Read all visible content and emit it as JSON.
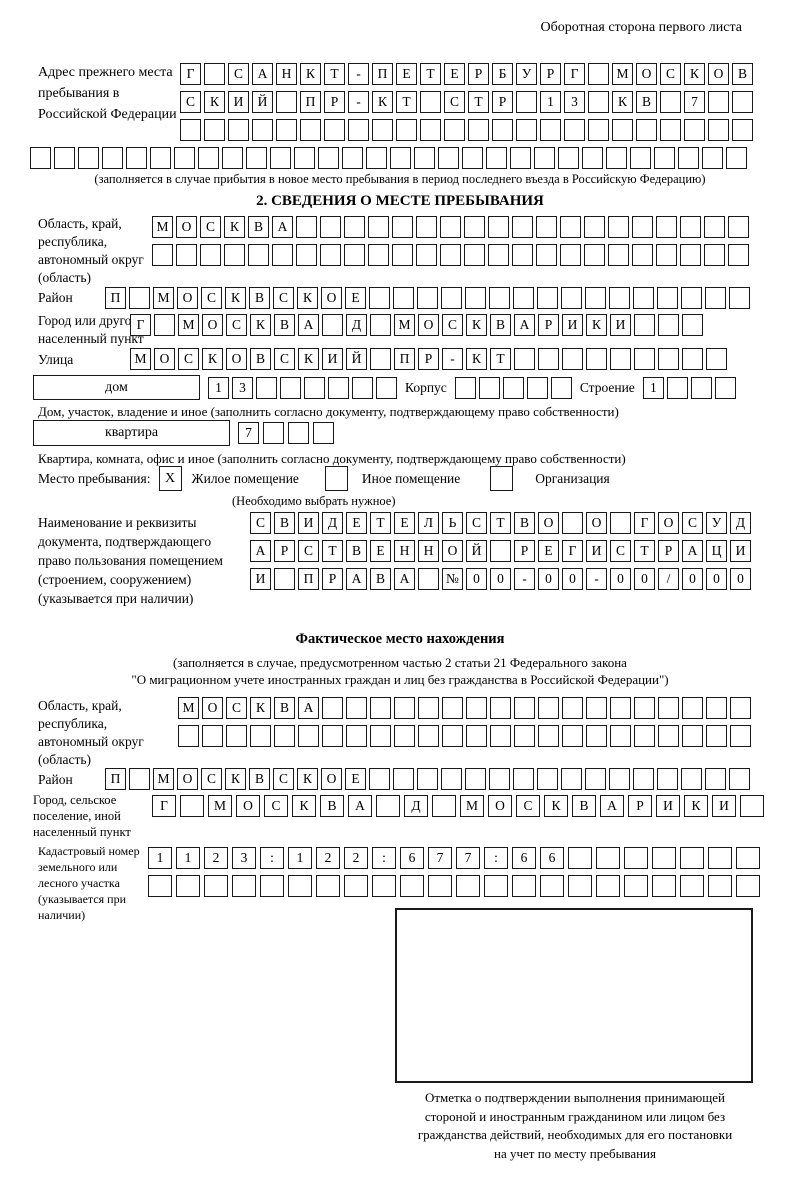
{
  "page": {
    "corner_note": "Оборотная сторона первого листа"
  },
  "prev_address": {
    "label": "Адрес прежнего места пребывания в Российской Федерации",
    "row1": [
      "Г",
      "",
      "С",
      "А",
      "Н",
      "К",
      "Т",
      "-",
      "П",
      "Е",
      "Т",
      "Е",
      "Р",
      "Б",
      "У",
      "Р",
      "Г",
      "",
      "М",
      "О",
      "С",
      "К",
      "О",
      "В"
    ],
    "row2": [
      "С",
      "К",
      "И",
      "Й",
      "",
      "П",
      "Р",
      "-",
      "К",
      "Т",
      "",
      "С",
      "Т",
      "Р",
      "",
      "1",
      "3",
      "",
      "К",
      "В",
      "",
      "7",
      "",
      ""
    ],
    "row3": [
      "",
      "",
      "",
      "",
      "",
      "",
      "",
      "",
      "",
      "",
      "",
      "",
      "",
      "",
      "",
      "",
      "",
      "",
      "",
      "",
      "",
      "",
      "",
      ""
    ],
    "row4": [
      "",
      "",
      "",
      "",
      "",
      "",
      "",
      "",
      "",
      "",
      "",
      "",
      "",
      "",
      "",
      "",
      "",
      "",
      "",
      "",
      "",
      "",
      "",
      "",
      "",
      "",
      "",
      "",
      "",
      ""
    ],
    "footnote": "(заполняется в случае прибытия в новое место пребывания в период последнего въезда в Российскую Федерацию)"
  },
  "section2": {
    "title": "2. СВЕДЕНИЯ О МЕСТЕ ПРЕБЫВАНИЯ",
    "oblast": {
      "label": "Область, край, республика, автономный округ (область)",
      "row1": [
        "М",
        "О",
        "С",
        "К",
        "В",
        "А",
        "",
        "",
        "",
        "",
        "",
        "",
        "",
        "",
        "",
        "",
        "",
        "",
        "",
        "",
        "",
        "",
        "",
        "",
        ""
      ],
      "row2": [
        "",
        "",
        "",
        "",
        "",
        "",
        "",
        "",
        "",
        "",
        "",
        "",
        "",
        "",
        "",
        "",
        "",
        "",
        "",
        "",
        "",
        "",
        "",
        "",
        ""
      ]
    },
    "rayon": {
      "label": "Район",
      "row": [
        "П",
        "",
        "М",
        "О",
        "С",
        "К",
        "В",
        "С",
        "К",
        "О",
        "Е",
        "",
        "",
        "",
        "",
        "",
        "",
        "",
        "",
        "",
        "",
        "",
        "",
        "",
        "",
        "",
        ""
      ]
    },
    "gorod": {
      "label": "Город или другой населенный пункт",
      "row": [
        "Г",
        "",
        "М",
        "О",
        "С",
        "К",
        "В",
        "А",
        "",
        "Д",
        "",
        "М",
        "О",
        "С",
        "К",
        "В",
        "А",
        "Р",
        "И",
        "К",
        "И",
        "",
        "",
        ""
      ]
    },
    "ulitsa": {
      "label": "Улица",
      "row": [
        "М",
        "О",
        "С",
        "К",
        "О",
        "В",
        "С",
        "К",
        "И",
        "Й",
        "",
        "П",
        "Р",
        "-",
        "К",
        "Т",
        "",
        "",
        "",
        "",
        "",
        "",
        "",
        "",
        ""
      ]
    },
    "dom": {
      "box_label": "дом",
      "cells": [
        "1",
        "3",
        "",
        "",
        "",
        "",
        "",
        ""
      ],
      "korpus_label": "Корпус",
      "korpus_cells": [
        "",
        "",
        "",
        "",
        ""
      ],
      "stroenie_label": "Строение",
      "stroenie_cells": [
        "1",
        "",
        "",
        ""
      ],
      "note": "Дом, участок, владение и иное (заполнить согласно документу, подтверждающему право собственности)"
    },
    "kvartira": {
      "box_label": "квартира",
      "cells": [
        "7",
        "",
        "",
        ""
      ],
      "note": "Квартира, комната, офис и иное (заполнить согласно документу, подтверждающему право собственности)"
    },
    "mesto": {
      "label": "Место пребывания:",
      "options": [
        {
          "checked": "X",
          "label": "Жилое помещение"
        },
        {
          "checked": "",
          "label": "Иное помещение"
        },
        {
          "checked": "",
          "label": "Организация"
        }
      ],
      "note": "(Необходимо выбрать нужное)"
    },
    "document": {
      "label": "Наименование и реквизиты документа, подтверждающего право пользования помещением (строением, сооружением) (указывается при наличии)",
      "row1": [
        "С",
        "В",
        "И",
        "Д",
        "Е",
        "Т",
        "Е",
        "Л",
        "Ь",
        "С",
        "Т",
        "В",
        "О",
        "",
        "О",
        "",
        "Г",
        "О",
        "С",
        "У",
        "Д"
      ],
      "row2": [
        "А",
        "Р",
        "С",
        "Т",
        "В",
        "Е",
        "Н",
        "Н",
        "О",
        "Й",
        "",
        "Р",
        "Е",
        "Г",
        "И",
        "С",
        "Т",
        "Р",
        "А",
        "Ц",
        "И"
      ],
      "row3": [
        "И",
        "",
        "П",
        "Р",
        "А",
        "В",
        "А",
        "",
        "№",
        "0",
        "0",
        "-",
        "0",
        "0",
        "-",
        "0",
        "0",
        "/",
        "0",
        "0",
        "0"
      ]
    }
  },
  "factual": {
    "title": "Фактическое место нахождения",
    "note1": "(заполняется в случае, предусмотренном частью 2 статьи 21 Федерального закона",
    "note2": "\"О миграционном учете иностранных граждан и лиц без гражданства в Российской Федерации\")",
    "oblast": {
      "label": "Область, край, республика, автономный округ (область)",
      "row1": [
        "М",
        "О",
        "С",
        "К",
        "В",
        "А",
        "",
        "",
        "",
        "",
        "",
        "",
        "",
        "",
        "",
        "",
        "",
        "",
        "",
        "",
        "",
        "",
        "",
        ""
      ],
      "row2": [
        "",
        "",
        "",
        "",
        "",
        "",
        "",
        "",
        "",
        "",
        "",
        "",
        "",
        "",
        "",
        "",
        "",
        "",
        "",
        "",
        "",
        "",
        "",
        ""
      ]
    },
    "rayon": {
      "label": "Район",
      "row": [
        "П",
        "",
        "М",
        "О",
        "С",
        "К",
        "В",
        "С",
        "К",
        "О",
        "Е",
        "",
        "",
        "",
        "",
        "",
        "",
        "",
        "",
        "",
        "",
        "",
        "",
        "",
        "",
        "",
        ""
      ]
    },
    "gorod": {
      "label": "Город, сельское поселение, иной населенный пункт",
      "row": [
        "Г",
        "",
        "М",
        "О",
        "С",
        "К",
        "В",
        "А",
        "",
        "Д",
        "",
        "М",
        "О",
        "С",
        "К",
        "В",
        "А",
        "Р",
        "И",
        "К",
        "И",
        ""
      ]
    },
    "kadastr": {
      "label": "Кадастровый номер земельного или лесного участка (указывается при наличии)",
      "row1": [
        "1",
        "1",
        "2",
        "3",
        ":",
        "1",
        "2",
        "2",
        ":",
        "6",
        "7",
        "7",
        ":",
        "6",
        "6",
        "",
        "",
        "",
        "",
        "",
        "",
        ""
      ],
      "row2": [
        "",
        "",
        "",
        "",
        "",
        "",
        "",
        "",
        "",
        "",
        "",
        "",
        "",
        "",
        "",
        "",
        "",
        "",
        "",
        "",
        "",
        ""
      ]
    }
  },
  "stamp": {
    "caption_lines": [
      "Отметка о подтверждении выполнения принимающей",
      "стороной и иностранным гражданином или лицом без",
      "гражданства действий, необходимых для его постановки",
      "на учет по месту пребывания"
    ]
  }
}
